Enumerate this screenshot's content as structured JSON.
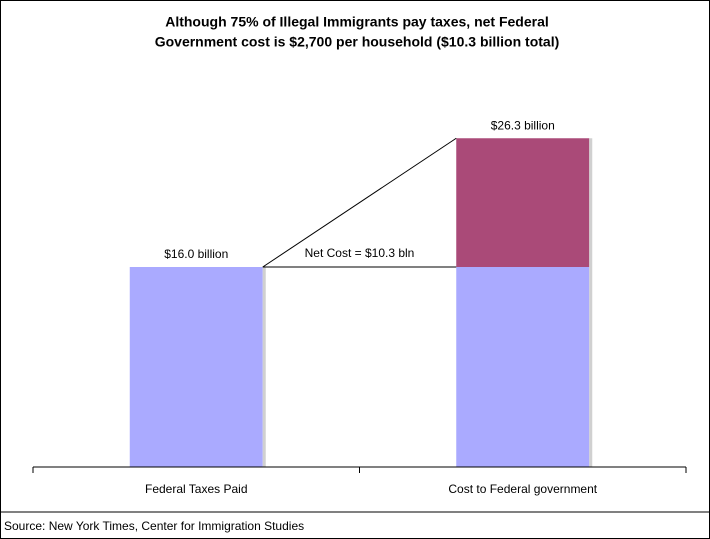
{
  "chart_data": {
    "type": "stacked_bar",
    "title": [
      "Although 75% of Illegal Immigrants pay taxes, net Federal",
      "Government cost is $2,700 per household ($10.3 billion total)"
    ],
    "categories": [
      "Federal Taxes Paid",
      "Cost to Federal government"
    ],
    "series": [
      {
        "color": "#aaaaff",
        "values": [
          16.0,
          16.0
        ]
      },
      {
        "color": "#aa4a78",
        "values": [
          null,
          10.3
        ]
      }
    ],
    "annotations": [
      "$16.0 billion",
      "$26.3 billion",
      "Net Cost = $10.3 bln"
    ],
    "ylim": [
      0,
      30
    ],
    "source": "Source: New York Times, Center for Immigration Studies"
  }
}
